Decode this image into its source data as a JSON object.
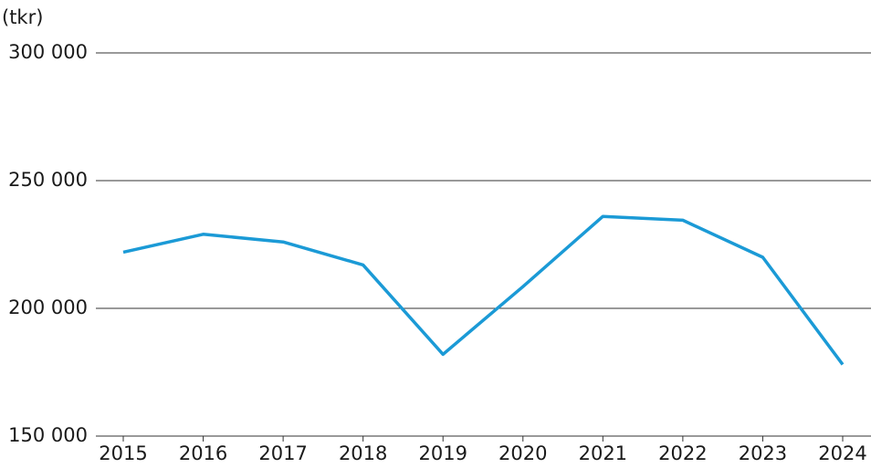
{
  "chart_data": {
    "type": "line",
    "y_axis_label": "(tkr)",
    "categories": [
      "2015",
      "2016",
      "2017",
      "2018",
      "2019",
      "2020",
      "2021",
      "2022",
      "2023",
      "2024"
    ],
    "values": [
      222000,
      229000,
      226000,
      217000,
      182000,
      208500,
      236000,
      234500,
      220000,
      178000
    ],
    "color": "#1b9ad6",
    "ylim": [
      150000,
      300000
    ],
    "yticks": [
      {
        "value": 150000,
        "label": "150 000"
      },
      {
        "value": 200000,
        "label": "200 000"
      },
      {
        "value": 250000,
        "label": "250 000"
      },
      {
        "value": 300000,
        "label": "300 000"
      }
    ],
    "grid": true
  }
}
